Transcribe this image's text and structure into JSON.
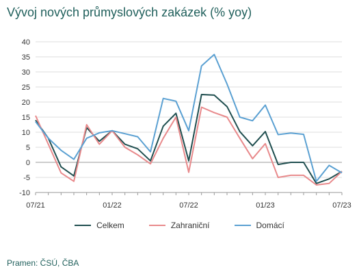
{
  "chart_data": {
    "type": "line",
    "title": "Vývoj nových průmyslových zakázek (% yoy)",
    "source": "Pramen: ČSÚ, ČBA",
    "xlabel": "",
    "ylabel": "",
    "ylim": [
      -10,
      40
    ],
    "yticks": [
      -10,
      -5,
      0,
      5,
      10,
      15,
      20,
      25,
      30,
      35,
      40
    ],
    "grid": true,
    "legend_position": "bottom",
    "x": [
      "2021-07",
      "2021-08",
      "2021-09",
      "2021-10",
      "2021-11",
      "2021-12",
      "2022-01",
      "2022-02",
      "2022-03",
      "2022-04",
      "2022-05",
      "2022-06",
      "2022-07",
      "2022-08",
      "2022-09",
      "2022-10",
      "2022-11",
      "2022-12",
      "2023-01",
      "2023-02",
      "2023-03",
      "2023-04",
      "2023-05",
      "2023-06",
      "2023-07"
    ],
    "x_tick_labels": [
      {
        "index": 0,
        "label": "07/21"
      },
      {
        "index": 6,
        "label": "01/22"
      },
      {
        "index": 12,
        "label": "07/22"
      },
      {
        "index": 18,
        "label": "01/23"
      },
      {
        "index": 24,
        "label": "07/23"
      }
    ],
    "series": [
      {
        "name": "Celkem",
        "color": "#1f4e4f",
        "values": [
          14,
          8,
          -1.5,
          -4.5,
          11.5,
          7,
          10.5,
          6,
          4.5,
          0.5,
          12,
          16.3,
          0.5,
          22.5,
          22.3,
          18.5,
          10.2,
          5.5,
          10.2,
          -0.7,
          0,
          0,
          -7,
          -5.5,
          -3
        ]
      },
      {
        "name": "Zahraniční",
        "color": "#e8898b",
        "values": [
          15.5,
          6,
          -3.5,
          -6.3,
          12.5,
          6,
          10.5,
          5,
          2.5,
          -0.5,
          8,
          15,
          -3.3,
          18.3,
          16.5,
          15,
          8,
          1.2,
          6.2,
          -5,
          -4.3,
          -4.3,
          -7.5,
          -7,
          -3
        ]
      },
      {
        "name": "Domácí",
        "color": "#5aa0d2",
        "values": [
          13.5,
          8,
          4,
          1,
          8,
          9.8,
          10.5,
          9.5,
          8.5,
          3.5,
          21.2,
          20.3,
          10.5,
          32,
          35.8,
          26,
          15,
          13.8,
          19,
          9.2,
          9.7,
          9.3,
          -6.3,
          -1,
          -3.5
        ]
      }
    ]
  }
}
